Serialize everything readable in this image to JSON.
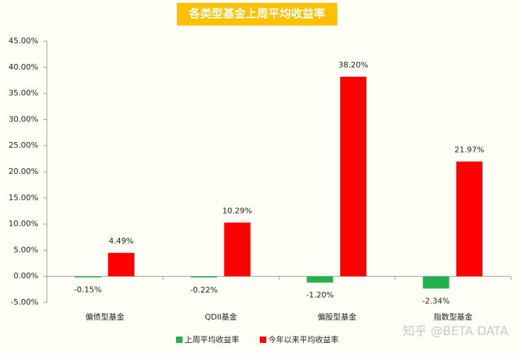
{
  "chart_data": {
    "type": "bar",
    "title": "各类型基金上周平均收益率",
    "categories": [
      "偏债型基金",
      "QDII基金",
      "偏股型基金",
      "指数型基金"
    ],
    "series": [
      {
        "name": "上周平均收益率",
        "color": "#22b14c",
        "values": [
          -0.15,
          -0.22,
          -1.2,
          -2.34
        ],
        "value_labels": [
          "-0.15%",
          "-0.22%",
          "-1.20%",
          "-2.34%"
        ]
      },
      {
        "name": "今年以来平均收益率",
        "color": "#ff0000",
        "values": [
          4.49,
          10.29,
          38.2,
          21.97
        ],
        "value_labels": [
          "4.49%",
          "10.29%",
          "38.20%",
          "21.97%"
        ]
      }
    ],
    "ylim": [
      -5,
      45
    ],
    "yticks": [
      {
        "value": -5,
        "label": "-5.00%"
      },
      {
        "value": 0,
        "label": "0.00%"
      },
      {
        "value": 5,
        "label": "5.00%"
      },
      {
        "value": 10,
        "label": "10.00%"
      },
      {
        "value": 15,
        "label": "15.00%"
      },
      {
        "value": 20,
        "label": "20.00%"
      },
      {
        "value": 25,
        "label": "25.00%"
      },
      {
        "value": 30,
        "label": "30.00%"
      },
      {
        "value": 35,
        "label": "35.00%"
      },
      {
        "value": 40,
        "label": "40.00%"
      },
      {
        "value": 45,
        "label": "45.00%"
      }
    ],
    "grid": false,
    "legend": "bottom",
    "watermark": "知乎 @BETA DATA"
  }
}
